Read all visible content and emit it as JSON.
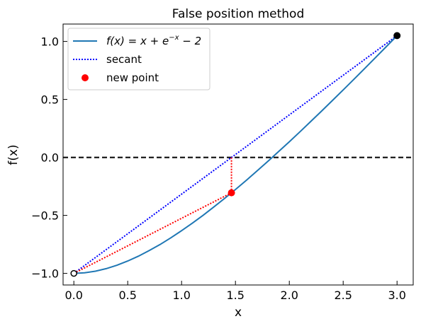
{
  "chart_data": {
    "type": "line",
    "title": "False position method",
    "xlabel": "x",
    "ylabel": "f(x)",
    "xlim": [
      -0.1,
      3.15
    ],
    "ylim": [
      -1.1,
      1.15
    ],
    "xticks": [
      0.0,
      0.5,
      1.0,
      1.5,
      2.0,
      2.5,
      3.0
    ],
    "xtick_labels": [
      "0.0",
      "0.5",
      "1.0",
      "1.5",
      "2.0",
      "2.5",
      "3.0"
    ],
    "yticks": [
      -1.0,
      -0.5,
      0.0,
      0.5,
      1.0
    ],
    "ytick_labels": [
      "−1.0",
      "−0.5",
      "0.0",
      "0.5",
      "1.0"
    ],
    "grid": false,
    "legend_position": "top-left",
    "function": {
      "name": "f(x) = x + e^{-x} - 2",
      "color": "#1f77b4",
      "x": [
        0.0,
        0.1,
        0.2,
        0.3,
        0.4,
        0.5,
        0.6,
        0.7,
        0.8,
        0.9,
        1.0,
        1.1,
        1.2,
        1.3,
        1.4,
        1.5,
        1.6,
        1.7,
        1.8,
        1.9,
        2.0,
        2.1,
        2.2,
        2.3,
        2.4,
        2.5,
        2.6,
        2.7,
        2.8,
        2.9,
        3.0
      ],
      "y": [
        -1.0,
        -0.995,
        -0.981,
        -0.959,
        -0.93,
        -0.893,
        -0.851,
        -0.803,
        -0.751,
        -0.693,
        -0.632,
        -0.567,
        -0.499,
        -0.427,
        -0.353,
        -0.277,
        -0.198,
        -0.117,
        -0.035,
        0.05,
        0.135,
        0.222,
        0.311,
        0.4,
        0.491,
        0.582,
        0.674,
        0.767,
        0.861,
        0.955,
        1.05
      ]
    },
    "zero_line": {
      "y": 0.0,
      "color": "#000000",
      "style": "dashed"
    },
    "secant": {
      "name": "secant",
      "color": "#0000ff",
      "style": "dotted",
      "x": [
        0.0,
        3.0
      ],
      "y": [
        -1.0,
        1.05
      ]
    },
    "new_secant": {
      "color": "#ff0000",
      "style": "dotted",
      "x": [
        0.0,
        1.463
      ],
      "y": [
        -1.0,
        -0.305
      ]
    },
    "vertical_drop": {
      "color": "#ff0000",
      "style": "dotted",
      "x": [
        1.463,
        1.463
      ],
      "y": [
        0.0,
        -0.305
      ]
    },
    "endpoints": [
      {
        "x": 0.0,
        "y": -1.0,
        "style": "hollow",
        "color": "#000000"
      },
      {
        "x": 3.0,
        "y": 1.05,
        "style": "filled",
        "color": "#000000"
      }
    ],
    "new_point": {
      "name": "new point",
      "x": 1.463,
      "y": -0.305,
      "color": "#ff0000"
    },
    "legend": [
      {
        "label_main": "f(x) = x + e",
        "label_sup": "−x",
        "label_tail": " − 2",
        "kind": "line",
        "color": "#1f77b4"
      },
      {
        "label": "secant",
        "kind": "dotted",
        "color": "#0000ff"
      },
      {
        "label": "new point",
        "kind": "marker",
        "color": "#ff0000"
      }
    ]
  }
}
